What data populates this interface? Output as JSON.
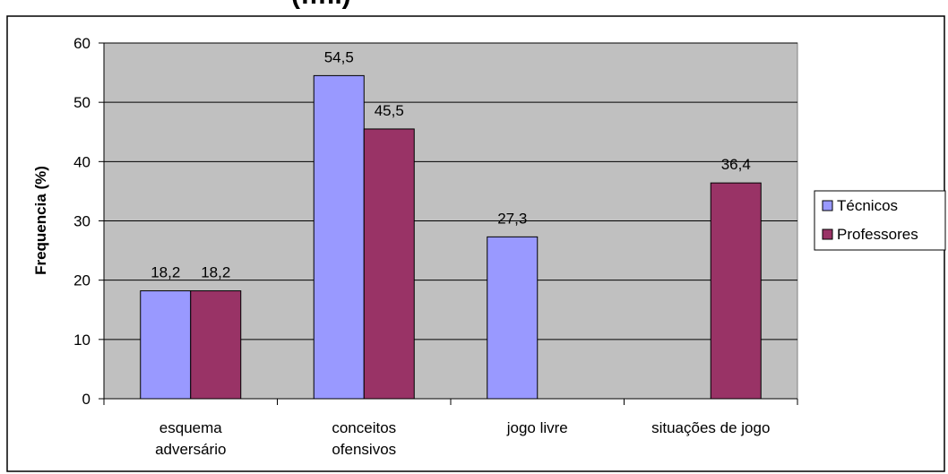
{
  "chart_data": {
    "type": "bar",
    "title": "(…..)",
    "xlabel": "",
    "ylabel": "Frequencia (%)",
    "ylim": [
      0,
      60
    ],
    "yticks": [
      0,
      10,
      20,
      30,
      40,
      50,
      60
    ],
    "grid": true,
    "legend_position": "right",
    "categories": [
      [
        "esquema",
        "adversário"
      ],
      [
        "conceitos",
        "ofensivos"
      ],
      [
        "jogo livre"
      ],
      [
        "situações de jogo"
      ]
    ],
    "series": [
      {
        "name": "Técnicos",
        "color": "#9999ff",
        "values": [
          18.2,
          54.5,
          27.3,
          null
        ],
        "labels": [
          "18,2",
          "54,5",
          "27,3",
          ""
        ]
      },
      {
        "name": "Professores",
        "color": "#993366",
        "values": [
          18.2,
          45.5,
          null,
          36.4
        ],
        "labels": [
          "18,2",
          "45,5",
          "",
          "36,4"
        ]
      }
    ],
    "plot_background": "#c0c0c0"
  }
}
